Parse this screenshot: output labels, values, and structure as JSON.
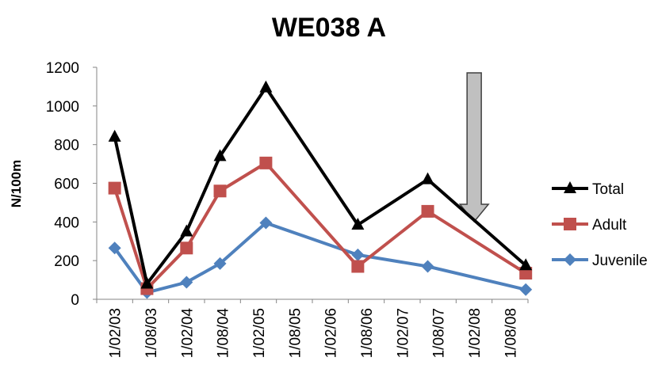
{
  "chart_data": {
    "type": "line",
    "title": "WE038 A",
    "xlabel": "",
    "ylabel": "N/100m",
    "ylim": [
      0,
      1200
    ],
    "yticks": [
      0,
      200,
      400,
      600,
      800,
      1000,
      1200
    ],
    "grid": false,
    "legend_position": "right",
    "categories": [
      "1/02/03",
      "1/08/03",
      "1/02/04",
      "1/08/04",
      "1/02/05",
      "1/08/05",
      "1/02/06",
      "1/08/06",
      "1/02/07",
      "1/08/07",
      "1/02/08",
      "1/08/08"
    ],
    "x_min": "2003-02-01",
    "x_max": "2008-08-01",
    "series": [
      {
        "name": "Total",
        "color": "#000000",
        "marker": "triangle",
        "points": [
          {
            "x": "2003-02-01",
            "y": 840
          },
          {
            "x": "2003-07-15",
            "y": 80
          },
          {
            "x": "2004-02-01",
            "y": 350
          },
          {
            "x": "2004-07-20",
            "y": 740
          },
          {
            "x": "2005-03-10",
            "y": 1095
          },
          {
            "x": "2006-06-20",
            "y": 385
          },
          {
            "x": "2007-06-10",
            "y": 620
          },
          {
            "x": "2008-10-20",
            "y": 175
          }
        ]
      },
      {
        "name": "Adult",
        "color": "#c0504d",
        "marker": "square",
        "points": [
          {
            "x": "2003-02-01",
            "y": 575
          },
          {
            "x": "2003-07-15",
            "y": 55
          },
          {
            "x": "2004-02-01",
            "y": 265
          },
          {
            "x": "2004-07-20",
            "y": 560
          },
          {
            "x": "2005-03-10",
            "y": 705
          },
          {
            "x": "2006-06-20",
            "y": 170
          },
          {
            "x": "2007-06-10",
            "y": 455
          },
          {
            "x": "2008-10-20",
            "y": 135
          }
        ]
      },
      {
        "name": "Juvenile",
        "color": "#4f81bd",
        "marker": "diamond",
        "points": [
          {
            "x": "2003-02-01",
            "y": 265
          },
          {
            "x": "2003-07-15",
            "y": 35
          },
          {
            "x": "2004-02-01",
            "y": 88
          },
          {
            "x": "2004-07-20",
            "y": 185
          },
          {
            "x": "2005-03-10",
            "y": 395
          },
          {
            "x": "2006-06-20",
            "y": 230
          },
          {
            "x": "2007-06-10",
            "y": 170
          },
          {
            "x": "2008-10-20",
            "y": 50
          }
        ]
      }
    ],
    "annotations": [
      {
        "type": "arrow",
        "direction": "down",
        "x": "2008-02-01",
        "color": "#c0c0c0"
      }
    ]
  }
}
